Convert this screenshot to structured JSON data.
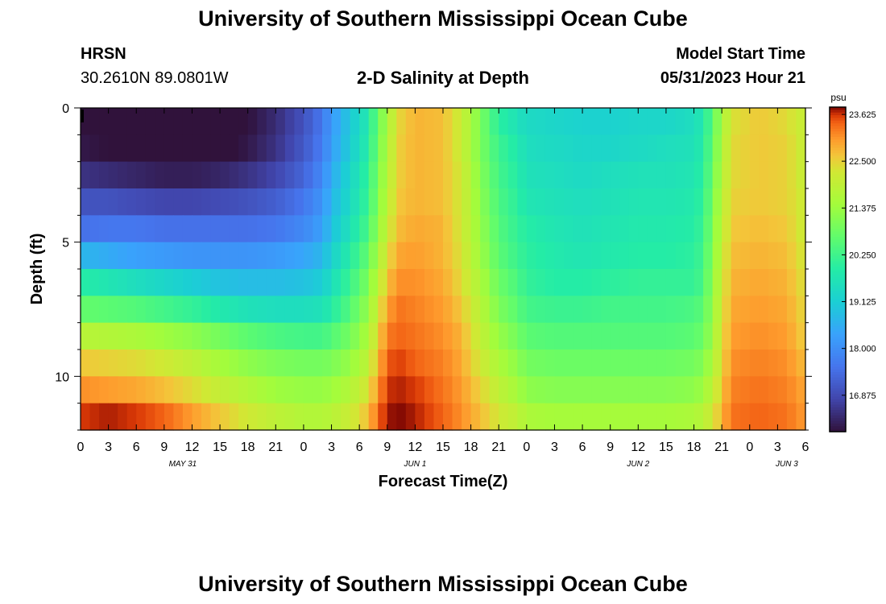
{
  "page": {
    "title": "University of Southern Mississippi Ocean Cube",
    "footer_title": "University of Southern Mississippi Ocean Cube",
    "station": "HRSN",
    "location": "30.2610N  89.0801W",
    "plot_title": "2-D Salinity at Depth",
    "model_start_label": "Model Start Time",
    "model_start_value": "05/31/2023 Hour 21"
  },
  "chart_data": {
    "type": "heatmap",
    "title": "2-D Salinity at Depth",
    "xlabel": "Forecast Time(Z)",
    "ylabel": "Depth (ft)",
    "x_ticks": [
      "0",
      "3",
      "6",
      "9",
      "12",
      "15",
      "18",
      "21",
      "0",
      "3",
      "6",
      "9",
      "12",
      "15",
      "18",
      "21",
      "0",
      "3",
      "6",
      "9",
      "12",
      "15",
      "18",
      "21",
      "0",
      "3",
      "6"
    ],
    "x_range_hours": [
      0,
      78
    ],
    "date_labels": [
      {
        "label": "MAY 31",
        "hour": 11
      },
      {
        "label": "JUN 1",
        "hour": 36
      },
      {
        "label": "JUN 2",
        "hour": 60
      },
      {
        "label": "JUN 3",
        "hour": 76
      }
    ],
    "y_ticks": [
      "0",
      "5",
      "10"
    ],
    "y_range_ft": [
      0,
      12
    ],
    "colorbar": {
      "unit": "psu",
      "min": 16.0,
      "max": 23.8,
      "tick_labels": [
        "23.625",
        "22.500",
        "21.375",
        "20.250",
        "19.125",
        "18.000",
        "16.875"
      ],
      "tick_values": [
        23.625,
        22.5,
        21.375,
        20.25,
        19.125,
        18.0,
        16.875
      ]
    },
    "depth_layers": 12,
    "time_knots": [
      0,
      3,
      6,
      9,
      12,
      15,
      18,
      21,
      24,
      26,
      27,
      29,
      31,
      32,
      33,
      34,
      36,
      39,
      41,
      43,
      44,
      45,
      47,
      48,
      51,
      54,
      57,
      60,
      63,
      66,
      67,
      68,
      69,
      70,
      73,
      76,
      78
    ],
    "salinity_psu": [
      [
        16.0,
        15.9,
        15.8,
        15.7,
        15.7,
        15.8,
        16.0,
        16.4,
        17.0,
        17.6,
        18.2,
        19.0,
        19.8,
        20.8,
        21.5,
        22.4,
        22.8,
        22.7,
        22.1,
        21.0,
        20.5,
        20.0,
        19.6,
        19.4,
        19.3,
        19.2,
        19.2,
        19.3,
        19.3,
        19.5,
        19.8,
        20.6,
        21.5,
        22.3,
        22.6,
        22.4,
        22.0
      ],
      [
        16.1,
        16.0,
        15.9,
        15.8,
        15.8,
        15.9,
        16.1,
        16.5,
        17.1,
        17.7,
        18.3,
        19.1,
        19.9,
        20.9,
        21.6,
        22.5,
        22.8,
        22.7,
        22.1,
        21.0,
        20.6,
        20.2,
        19.8,
        19.5,
        19.4,
        19.3,
        19.3,
        19.4,
        19.5,
        19.6,
        19.9,
        20.7,
        21.6,
        22.4,
        22.6,
        22.5,
        22.0
      ],
      [
        16.5,
        16.4,
        16.3,
        16.2,
        16.2,
        16.3,
        16.5,
        16.8,
        17.3,
        17.9,
        18.5,
        19.3,
        20.1,
        21.0,
        21.7,
        22.5,
        22.8,
        22.7,
        22.2,
        21.1,
        20.7,
        20.3,
        19.9,
        19.6,
        19.5,
        19.4,
        19.5,
        19.6,
        19.6,
        19.7,
        20.0,
        20.8,
        21.7,
        22.4,
        22.6,
        22.5,
        22.0
      ],
      [
        17.0,
        17.0,
        16.9,
        16.8,
        16.8,
        16.9,
        17.0,
        17.2,
        17.6,
        18.1,
        18.7,
        19.4,
        20.2,
        21.1,
        21.8,
        22.6,
        22.8,
        22.7,
        22.2,
        21.2,
        20.8,
        20.4,
        20.0,
        19.7,
        19.6,
        19.5,
        19.6,
        19.7,
        19.7,
        19.8,
        20.1,
        20.9,
        21.8,
        22.5,
        22.6,
        22.5,
        22.1
      ],
      [
        17.5,
        17.6,
        17.6,
        17.5,
        17.5,
        17.5,
        17.5,
        17.6,
        17.9,
        18.3,
        18.9,
        19.6,
        20.4,
        21.3,
        22.0,
        22.7,
        22.9,
        22.8,
        22.2,
        21.3,
        20.9,
        20.5,
        20.1,
        19.9,
        19.7,
        19.6,
        19.7,
        19.8,
        19.8,
        19.9,
        20.2,
        21.0,
        21.9,
        22.6,
        22.7,
        22.6,
        22.1
      ],
      [
        18.7,
        18.5,
        18.3,
        18.2,
        18.1,
        18.1,
        18.1,
        18.2,
        18.4,
        18.7,
        19.2,
        19.9,
        20.7,
        21.6,
        22.3,
        22.9,
        23.0,
        22.8,
        22.3,
        21.4,
        21.0,
        20.6,
        20.2,
        20.0,
        19.8,
        19.7,
        19.8,
        19.9,
        19.9,
        20.0,
        20.3,
        21.1,
        22.0,
        22.7,
        22.8,
        22.7,
        22.2
      ],
      [
        19.9,
        19.7,
        19.5,
        19.3,
        19.1,
        18.9,
        18.8,
        18.8,
        18.9,
        19.1,
        19.5,
        20.2,
        21.0,
        21.9,
        22.6,
        23.1,
        23.1,
        22.9,
        22.4,
        21.6,
        21.2,
        20.8,
        20.4,
        20.1,
        19.9,
        19.9,
        20.0,
        20.1,
        20.1,
        20.1,
        20.4,
        21.2,
        22.1,
        22.8,
        22.9,
        22.8,
        22.3
      ],
      [
        20.7,
        20.6,
        20.5,
        20.3,
        20.1,
        19.8,
        19.6,
        19.5,
        19.5,
        19.6,
        19.9,
        20.5,
        21.3,
        22.2,
        22.9,
        23.3,
        23.2,
        23.0,
        22.6,
        21.8,
        21.4,
        21.0,
        20.6,
        20.3,
        20.2,
        20.2,
        20.3,
        20.3,
        20.3,
        20.4,
        20.6,
        21.3,
        22.2,
        22.9,
        23.0,
        22.9,
        22.4
      ],
      [
        21.8,
        21.7,
        21.6,
        21.4,
        21.2,
        20.9,
        20.6,
        20.4,
        20.3,
        20.3,
        20.5,
        20.9,
        21.6,
        22.5,
        23.2,
        23.4,
        23.3,
        23.1,
        22.8,
        22.0,
        21.6,
        21.3,
        20.9,
        20.6,
        20.5,
        20.5,
        20.5,
        20.5,
        20.5,
        20.6,
        20.8,
        21.4,
        22.3,
        23.0,
        23.1,
        23.0,
        22.5
      ],
      [
        22.6,
        22.5,
        22.4,
        22.2,
        21.9,
        21.5,
        21.2,
        21.0,
        20.9,
        20.9,
        21.0,
        21.3,
        21.9,
        22.8,
        23.4,
        23.6,
        23.4,
        23.2,
        22.9,
        22.2,
        21.9,
        21.6,
        21.2,
        20.9,
        20.8,
        20.8,
        20.8,
        20.8,
        20.8,
        20.9,
        21.1,
        21.6,
        22.4,
        23.1,
        23.2,
        23.1,
        22.7
      ],
      [
        23.1,
        23.0,
        22.9,
        22.7,
        22.4,
        22.0,
        21.7,
        21.4,
        21.3,
        21.3,
        21.4,
        21.7,
        22.3,
        23.1,
        23.6,
        23.7,
        23.6,
        23.3,
        23.0,
        22.5,
        22.2,
        21.9,
        21.5,
        21.2,
        21.1,
        21.1,
        21.1,
        21.1,
        21.1,
        21.2,
        21.4,
        21.9,
        22.6,
        23.2,
        23.3,
        23.2,
        22.9
      ],
      [
        23.6,
        23.7,
        23.6,
        23.4,
        23.0,
        22.6,
        22.2,
        21.9,
        21.7,
        21.7,
        21.8,
        22.1,
        22.7,
        23.4,
        23.7,
        23.8,
        23.7,
        23.4,
        23.1,
        22.7,
        22.5,
        22.2,
        21.9,
        21.6,
        21.5,
        21.5,
        21.5,
        21.5,
        21.5,
        21.6,
        21.8,
        22.2,
        22.8,
        23.3,
        23.4,
        23.3,
        23.0
      ]
    ]
  }
}
